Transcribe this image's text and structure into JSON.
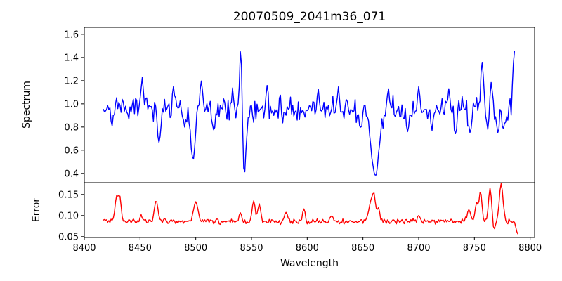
{
  "figure": {
    "title": "20070509_2041m36_071",
    "xlabel": "Wavelength",
    "ylabel_top": "Spectrum",
    "ylabel_bottom": "Error",
    "background": "#ffffff",
    "spine_color": "#000000",
    "text_color": "#000000"
  },
  "chart_data": {
    "type": "line",
    "title": "20070509_2041m36_071",
    "xlabel": "Wavelength",
    "grid": false,
    "legend": false,
    "xlim": [
      8400,
      8804
    ],
    "x_ticks": {
      "values": [
        8400,
        8450,
        8500,
        8550,
        8600,
        8650,
        8700,
        8750,
        8800
      ],
      "labels": [
        "8400",
        "8450",
        "8500",
        "8550",
        "8600",
        "8650",
        "8700",
        "8750",
        "8800"
      ]
    },
    "panels": [
      {
        "name": "spectrum",
        "ylabel": "Spectrum",
        "color": "#0000ff",
        "line_width": 1.4,
        "ylim": [
          0.32,
          1.66
        ],
        "y_ticks": {
          "values": [
            0.4,
            0.6,
            0.8,
            1.0,
            1.2,
            1.4,
            1.6
          ],
          "labels": [
            "0.4",
            "0.6",
            "0.8",
            "1.0",
            "1.2",
            "1.4",
            "1.6"
          ]
        },
        "x_start": 8417,
        "x_end": 8786,
        "x_step": 1,
        "baseline": 0.95,
        "noise_amplitude": 0.13,
        "seed": 77071,
        "features": [
          {
            "x": 8425,
            "value": 0.82,
            "width": 1.0
          },
          {
            "x": 8452,
            "value": 1.22,
            "width": 1.1
          },
          {
            "x": 8467,
            "value": 0.67,
            "width": 1.5
          },
          {
            "x": 8480,
            "value": 1.15,
            "width": 1.0
          },
          {
            "x": 8490,
            "value": 0.8,
            "width": 1.0
          },
          {
            "x": 8497.5,
            "value": 0.52,
            "width": 2.0
          },
          {
            "x": 8505,
            "value": 1.2,
            "width": 1.2
          },
          {
            "x": 8516,
            "value": 0.77,
            "width": 1.2
          },
          {
            "x": 8533,
            "value": 1.13,
            "width": 1.0
          },
          {
            "x": 8540.5,
            "value": 1.58,
            "width": 1.0
          },
          {
            "x": 8543.5,
            "value": 0.38,
            "width": 1.6
          },
          {
            "x": 8564,
            "value": 1.16,
            "width": 1.0
          },
          {
            "x": 8610,
            "value": 1.13,
            "width": 1.0
          },
          {
            "x": 8628,
            "value": 1.14,
            "width": 1.0
          },
          {
            "x": 8648,
            "value": 0.79,
            "width": 1.2
          },
          {
            "x": 8661,
            "value": 0.38,
            "width": 3.5
          },
          {
            "x": 8673,
            "value": 1.12,
            "width": 1.0
          },
          {
            "x": 8690,
            "value": 0.75,
            "width": 1.2
          },
          {
            "x": 8700,
            "value": 1.14,
            "width": 1.0
          },
          {
            "x": 8712,
            "value": 0.78,
            "width": 1.0
          },
          {
            "x": 8727,
            "value": 1.12,
            "width": 1.0
          },
          {
            "x": 8733,
            "value": 0.73,
            "width": 1.2
          },
          {
            "x": 8746,
            "value": 0.76,
            "width": 1.5
          },
          {
            "x": 8757,
            "value": 1.37,
            "width": 1.2
          },
          {
            "x": 8762,
            "value": 0.78,
            "width": 1.0
          },
          {
            "x": 8765,
            "value": 1.19,
            "width": 1.0
          },
          {
            "x": 8771,
            "value": 0.75,
            "width": 1.3
          },
          {
            "x": 8776,
            "value": 0.79,
            "width": 1.2
          },
          {
            "x": 8786,
            "value": 1.47,
            "width": 1.3
          }
        ]
      },
      {
        "name": "error",
        "ylabel": "Error",
        "color": "#ff0000",
        "line_width": 1.4,
        "ylim": [
          0.048,
          0.178
        ],
        "y_ticks": {
          "values": [
            0.05,
            0.1,
            0.15
          ],
          "labels": [
            "0.05",
            "0.10",
            "0.15"
          ]
        },
        "x_start": 8417,
        "x_end": 8789,
        "x_step": 1,
        "baseline": 0.086,
        "noise_amplitude": 0.008,
        "seed": 20411,
        "features": [
          {
            "x": 8429,
            "value": 0.145,
            "width": 1.5
          },
          {
            "x": 8432,
            "value": 0.138,
            "width": 1.2
          },
          {
            "x": 8451,
            "value": 0.102,
            "width": 1.0
          },
          {
            "x": 8464.5,
            "value": 0.135,
            "width": 1.6
          },
          {
            "x": 8500,
            "value": 0.132,
            "width": 2.0
          },
          {
            "x": 8540,
            "value": 0.106,
            "width": 1.2
          },
          {
            "x": 8552,
            "value": 0.134,
            "width": 1.4
          },
          {
            "x": 8557,
            "value": 0.128,
            "width": 1.2
          },
          {
            "x": 8581,
            "value": 0.108,
            "width": 1.5
          },
          {
            "x": 8597,
            "value": 0.116,
            "width": 1.2
          },
          {
            "x": 8622,
            "value": 0.1,
            "width": 1.2
          },
          {
            "x": 8657,
            "value": 0.13,
            "width": 1.8
          },
          {
            "x": 8660,
            "value": 0.142,
            "width": 1.4
          },
          {
            "x": 8664,
            "value": 0.118,
            "width": 1.2
          },
          {
            "x": 8700,
            "value": 0.1,
            "width": 1.2
          },
          {
            "x": 8745,
            "value": 0.115,
            "width": 1.5
          },
          {
            "x": 8752,
            "value": 0.13,
            "width": 1.4
          },
          {
            "x": 8755.5,
            "value": 0.156,
            "width": 1.2
          },
          {
            "x": 8764,
            "value": 0.166,
            "width": 1.3
          },
          {
            "x": 8767.5,
            "value": 0.065,
            "width": 0.9
          },
          {
            "x": 8774,
            "value": 0.176,
            "width": 1.6
          },
          {
            "x": 8789,
            "value": 0.056,
            "width": 1.5
          }
        ]
      }
    ]
  }
}
